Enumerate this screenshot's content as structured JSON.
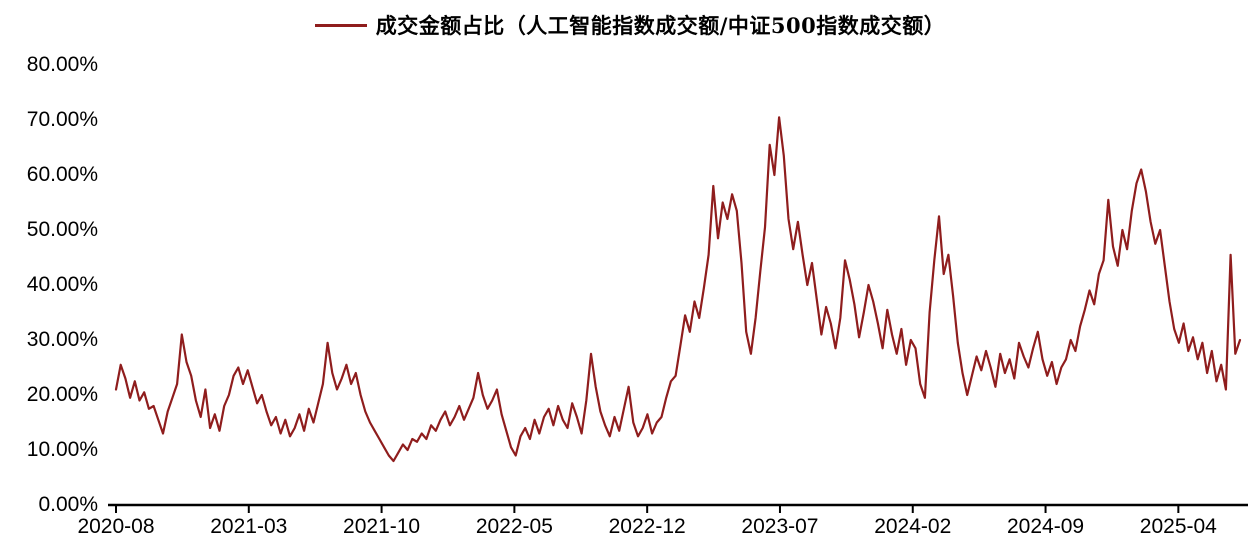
{
  "legend": {
    "label": "成交金额占比（人工智能指数成交额/中证500指数成交额）"
  },
  "colors": {
    "series": "#8F1D1D",
    "axis": "#000000",
    "text": "#000000",
    "background": "#FFFFFF"
  },
  "chart_data": {
    "type": "line",
    "title": "成交金额占比（人工智能指数成交额/中证500指数成交额）",
    "series_name": "成交金额占比（人工智能指数成交额/中证500指数成交额）",
    "grid": false,
    "legend_position": "top-center",
    "ylim": [
      0,
      80
    ],
    "y_unit": "%",
    "y_tick_labels": [
      "0.00%",
      "10.00%",
      "20.00%",
      "30.00%",
      "40.00%",
      "50.00%",
      "60.00%",
      "70.00%",
      "80.00%"
    ],
    "x_tick_labels": [
      "2020-08",
      "2021-03",
      "2021-10",
      "2022-05",
      "2022-12",
      "2023-07",
      "2024-02",
      "2024-09",
      "2025-04"
    ],
    "x_tick_months_from_start": [
      0,
      7,
      14,
      21,
      28,
      35,
      42,
      49,
      56
    ],
    "x_start_month": "2020-08",
    "x_end_month": "2025-07",
    "months_span": 59.25,
    "values_percent": [
      21.0,
      25.5,
      23.0,
      19.5,
      22.5,
      19.0,
      20.5,
      17.5,
      18.0,
      15.5,
      13.0,
      17.0,
      19.5,
      22.0,
      31.0,
      26.0,
      23.5,
      19.0,
      16.0,
      21.0,
      14.0,
      16.5,
      13.5,
      18.0,
      20.0,
      23.5,
      25.0,
      22.0,
      24.5,
      21.5,
      18.5,
      20.0,
      17.0,
      14.5,
      16.0,
      13.0,
      15.5,
      12.5,
      14.0,
      16.5,
      13.5,
      17.5,
      15.0,
      18.5,
      22.0,
      29.5,
      24.0,
      21.0,
      23.0,
      25.5,
      22.0,
      24.0,
      20.0,
      17.0,
      15.0,
      13.5,
      12.0,
      10.5,
      9.0,
      8.0,
      9.5,
      11.0,
      10.0,
      12.0,
      11.5,
      13.0,
      12.0,
      14.5,
      13.5,
      15.5,
      17.0,
      14.5,
      16.0,
      18.0,
      15.5,
      17.5,
      19.5,
      24.0,
      20.0,
      17.5,
      19.0,
      21.0,
      16.5,
      13.5,
      10.5,
      9.0,
      12.5,
      14.0,
      12.0,
      15.5,
      13.0,
      16.0,
      17.5,
      14.5,
      18.0,
      15.5,
      14.0,
      18.5,
      16.0,
      13.0,
      19.0,
      27.5,
      21.5,
      17.0,
      14.5,
      12.5,
      16.0,
      13.5,
      17.5,
      21.5,
      15.0,
      12.5,
      14.0,
      16.5,
      13.0,
      15.0,
      16.0,
      19.5,
      22.5,
      23.5,
      29.0,
      34.5,
      31.5,
      37.0,
      34.0,
      39.5,
      45.5,
      58.0,
      48.5,
      55.0,
      52.0,
      56.5,
      53.5,
      44.0,
      31.5,
      27.5,
      34.0,
      42.5,
      50.5,
      65.5,
      60.0,
      70.5,
      63.5,
      52.0,
      46.5,
      51.5,
      45.5,
      40.0,
      44.0,
      37.5,
      31.0,
      36.0,
      33.0,
      28.5,
      34.0,
      44.5,
      41.0,
      36.5,
      30.5,
      35.0,
      40.0,
      37.0,
      33.0,
      28.5,
      35.5,
      31.0,
      27.5,
      32.0,
      25.5,
      30.0,
      28.5,
      22.0,
      19.5,
      35.0,
      44.5,
      52.5,
      42.0,
      45.5,
      38.0,
      29.5,
      24.0,
      20.0,
      23.5,
      27.0,
      24.5,
      28.0,
      25.0,
      21.5,
      27.5,
      24.0,
      26.5,
      23.0,
      29.5,
      27.0,
      25.0,
      28.5,
      31.5,
      26.5,
      23.5,
      26.0,
      22.0,
      25.0,
      26.5,
      30.0,
      28.0,
      32.5,
      35.5,
      39.0,
      36.5,
      42.0,
      44.5,
      55.5,
      47.0,
      43.5,
      50.0,
      46.5,
      53.5,
      58.5,
      61.0,
      57.0,
      51.5,
      47.5,
      50.0,
      43.5,
      37.0,
      32.0,
      29.5,
      33.0,
      28.0,
      30.5,
      26.5,
      29.5,
      24.0,
      28.0,
      22.5,
      25.5,
      21.0,
      45.5,
      27.5,
      30.0
    ]
  }
}
